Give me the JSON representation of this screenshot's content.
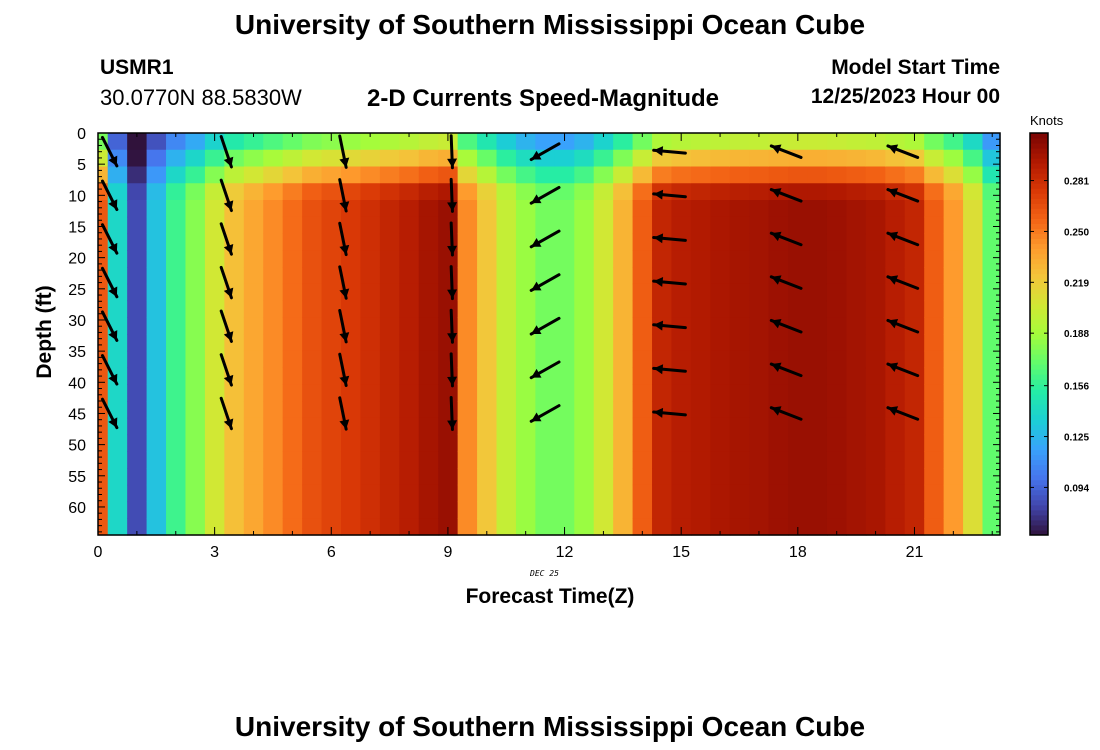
{
  "header": {
    "title": "University of Southern Mississippi Ocean Cube",
    "station_id": "USMR1",
    "location": "30.0770N  88.5830W",
    "subtitle": "2-D Currents Speed-Magnitude",
    "start_label": "Model Start Time",
    "start_time": "12/25/2023 Hour 00",
    "footer_title": "University of Southern Mississippi Ocean Cube"
  },
  "chart_data": {
    "type": "heatmap",
    "title": "2-D Currents Speed-Magnitude",
    "xlabel": "Forecast Time(Z)",
    "ylabel": "Depth (ft)",
    "date_label": "DEC 25",
    "x_ticks": [
      0,
      3,
      6,
      9,
      12,
      15,
      18,
      21
    ],
    "y_ticks": [
      0,
      5,
      10,
      15,
      20,
      25,
      30,
      35,
      40,
      45,
      50,
      55,
      60
    ],
    "xlim": [
      0,
      23.2
    ],
    "ylim": [
      0,
      64.5
    ],
    "colorbar": {
      "label": "Knots",
      "ticks": [
        0.094,
        0.125,
        0.156,
        0.188,
        0.219,
        0.25,
        0.281
      ],
      "range": [
        0.065,
        0.31
      ],
      "colors": [
        "#30123b",
        "#4145ab",
        "#4675ed",
        "#39a2fc",
        "#1bcfd4",
        "#24eca6",
        "#61fc6c",
        "#a4fc3b",
        "#d1e834",
        "#f3c63a",
        "#fe9b2d",
        "#f36315",
        "#d93806",
        "#b11901",
        "#7a0403"
      ]
    },
    "x_hours": [
      0,
      0.5,
      1,
      1.5,
      2,
      2.5,
      3,
      3.5,
      4,
      4.5,
      5,
      5.5,
      6,
      6.5,
      7,
      7.5,
      8,
      8.5,
      9,
      9.5,
      10,
      10.5,
      11,
      11.5,
      12,
      12.5,
      13,
      13.5,
      14,
      14.5,
      15,
      15.5,
      16,
      16.5,
      17,
      17.5,
      18,
      18.5,
      19,
      19.5,
      20,
      20.5,
      21,
      21.5,
      22,
      22.5,
      23
    ],
    "column_speed_knots": [
      0.262,
      0.14,
      0.085,
      0.13,
      0.16,
      0.18,
      0.205,
      0.225,
      0.235,
      0.245,
      0.255,
      0.265,
      0.27,
      0.275,
      0.28,
      0.285,
      0.29,
      0.296,
      0.3,
      0.245,
      0.222,
      0.2,
      0.185,
      0.175,
      0.175,
      0.185,
      0.205,
      0.23,
      0.26,
      0.285,
      0.29,
      0.292,
      0.294,
      0.296,
      0.297,
      0.299,
      0.3,
      0.3,
      0.299,
      0.297,
      0.295,
      0.29,
      0.285,
      0.26,
      0.24,
      0.21,
      0.17
    ],
    "vector_times": [
      0.3,
      3.3,
      6.3,
      9.1,
      11.5,
      14.7,
      17.7,
      20.7
    ],
    "vector_depths": [
      3,
      10,
      17,
      24,
      31,
      38,
      45
    ],
    "vector_components": [
      {
        "u": 0.45,
        "v": -0.89
      },
      {
        "u": 0.32,
        "v": -0.95
      },
      {
        "u": 0.2,
        "v": -0.98
      },
      {
        "u": 0.04,
        "v": -1.0
      },
      {
        "u": -0.87,
        "v": -0.49
      },
      {
        "u": -0.99,
        "v": 0.09
      },
      {
        "u": -0.93,
        "v": 0.36
      },
      {
        "u": -0.93,
        "v": 0.36
      }
    ]
  }
}
